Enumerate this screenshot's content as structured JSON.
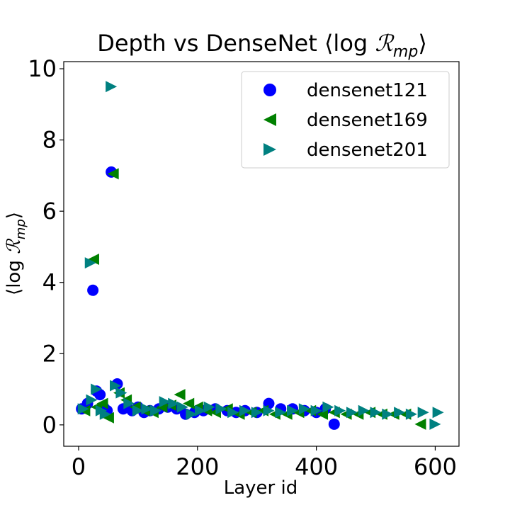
{
  "chart_data": {
    "type": "scatter",
    "title": "Depth vs DenseNet ⟨log ℛ_mp⟩",
    "xlabel": "Layer id",
    "ylabel": "⟨log ℛ_mp⟩",
    "xlim": [
      -25,
      640
    ],
    "ylim": [
      -0.6,
      10.2
    ],
    "xticks": [
      0,
      200,
      400,
      600
    ],
    "yticks": [
      0,
      2,
      4,
      6,
      8,
      10
    ],
    "grid": false,
    "legend_position": "top-right",
    "series": [
      {
        "name": "densenet121",
        "marker": "circle",
        "color": "#0000ff",
        "points": [
          [
            5,
            0.45
          ],
          [
            15,
            0.6
          ],
          [
            24,
            3.78
          ],
          [
            30,
            0.95
          ],
          [
            36,
            0.85
          ],
          [
            42,
            0.5
          ],
          [
            48,
            0.4
          ],
          [
            55,
            7.1
          ],
          [
            65,
            1.15
          ],
          [
            75,
            0.45
          ],
          [
            90,
            0.4
          ],
          [
            100,
            0.5
          ],
          [
            110,
            0.35
          ],
          [
            120,
            0.4
          ],
          [
            135,
            0.45
          ],
          [
            150,
            0.5
          ],
          [
            165,
            0.45
          ],
          [
            180,
            0.3
          ],
          [
            195,
            0.35
          ],
          [
            210,
            0.4
          ],
          [
            230,
            0.45
          ],
          [
            250,
            0.4
          ],
          [
            265,
            0.35
          ],
          [
            280,
            0.4
          ],
          [
            300,
            0.35
          ],
          [
            320,
            0.6
          ],
          [
            340,
            0.45
          ],
          [
            360,
            0.45
          ],
          [
            380,
            0.4
          ],
          [
            400,
            0.35
          ],
          [
            415,
            0.45
          ],
          [
            430,
            0.02
          ]
        ]
      },
      {
        "name": "densenet169",
        "marker": "triangle-left",
        "color": "#008000",
        "points": [
          [
            10,
            0.4
          ],
          [
            25,
            4.65
          ],
          [
            30,
            0.5
          ],
          [
            40,
            0.6
          ],
          [
            50,
            0.2
          ],
          [
            58,
            7.05
          ],
          [
            68,
            0.9
          ],
          [
            80,
            0.7
          ],
          [
            95,
            0.5
          ],
          [
            110,
            0.4
          ],
          [
            125,
            0.35
          ],
          [
            140,
            0.5
          ],
          [
            155,
            0.55
          ],
          [
            170,
            0.85
          ],
          [
            185,
            0.6
          ],
          [
            200,
            0.5
          ],
          [
            215,
            0.4
          ],
          [
            230,
            0.35
          ],
          [
            250,
            0.45
          ],
          [
            270,
            0.3
          ],
          [
            290,
            0.35
          ],
          [
            310,
            0.4
          ],
          [
            330,
            0.3
          ],
          [
            350,
            0.3
          ],
          [
            370,
            0.35
          ],
          [
            390,
            0.4
          ],
          [
            410,
            0.3
          ],
          [
            430,
            0.35
          ],
          [
            450,
            0.3
          ],
          [
            470,
            0.3
          ],
          [
            490,
            0.35
          ],
          [
            510,
            0.3
          ],
          [
            530,
            0.3
          ],
          [
            550,
            0.3
          ],
          [
            575,
            0.02
          ]
        ]
      },
      {
        "name": "densenet201",
        "marker": "triangle-right",
        "color": "#008080",
        "points": [
          [
            8,
            0.45
          ],
          [
            20,
            4.55
          ],
          [
            22,
            0.7
          ],
          [
            30,
            1.0
          ],
          [
            38,
            0.4
          ],
          [
            45,
            0.3
          ],
          [
            55,
            9.5
          ],
          [
            62,
            1.1
          ],
          [
            72,
            0.9
          ],
          [
            85,
            0.6
          ],
          [
            100,
            0.4
          ],
          [
            115,
            0.45
          ],
          [
            130,
            0.4
          ],
          [
            145,
            0.65
          ],
          [
            160,
            0.6
          ],
          [
            175,
            0.5
          ],
          [
            190,
            0.3
          ],
          [
            205,
            0.4
          ],
          [
            220,
            0.5
          ],
          [
            240,
            0.45
          ],
          [
            260,
            0.35
          ],
          [
            280,
            0.4
          ],
          [
            300,
            0.35
          ],
          [
            320,
            0.4
          ],
          [
            340,
            0.35
          ],
          [
            360,
            0.4
          ],
          [
            380,
            0.45
          ],
          [
            400,
            0.4
          ],
          [
            420,
            0.5
          ],
          [
            440,
            0.4
          ],
          [
            460,
            0.35
          ],
          [
            480,
            0.4
          ],
          [
            500,
            0.35
          ],
          [
            520,
            0.3
          ],
          [
            540,
            0.35
          ],
          [
            560,
            0.3
          ],
          [
            580,
            0.35
          ],
          [
            600,
            0.02
          ],
          [
            605,
            0.35
          ]
        ]
      }
    ]
  }
}
